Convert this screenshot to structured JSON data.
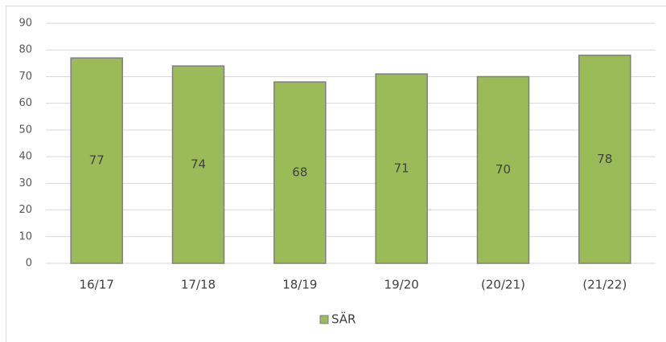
{
  "chart_data": {
    "type": "bar",
    "categories": [
      "16/17",
      "17/18",
      "18/19",
      "19/20",
      "(20/21)",
      "(21/22)"
    ],
    "series": [
      {
        "name": "SÄR",
        "color": "#9bbb59",
        "values": [
          77,
          74,
          68,
          71,
          70,
          78
        ]
      }
    ],
    "ylim": [
      0,
      90
    ],
    "yticks": [
      0,
      10,
      20,
      30,
      40,
      50,
      60,
      70,
      80,
      90
    ],
    "grid": true,
    "data_labels": true,
    "legend": "bottom"
  }
}
